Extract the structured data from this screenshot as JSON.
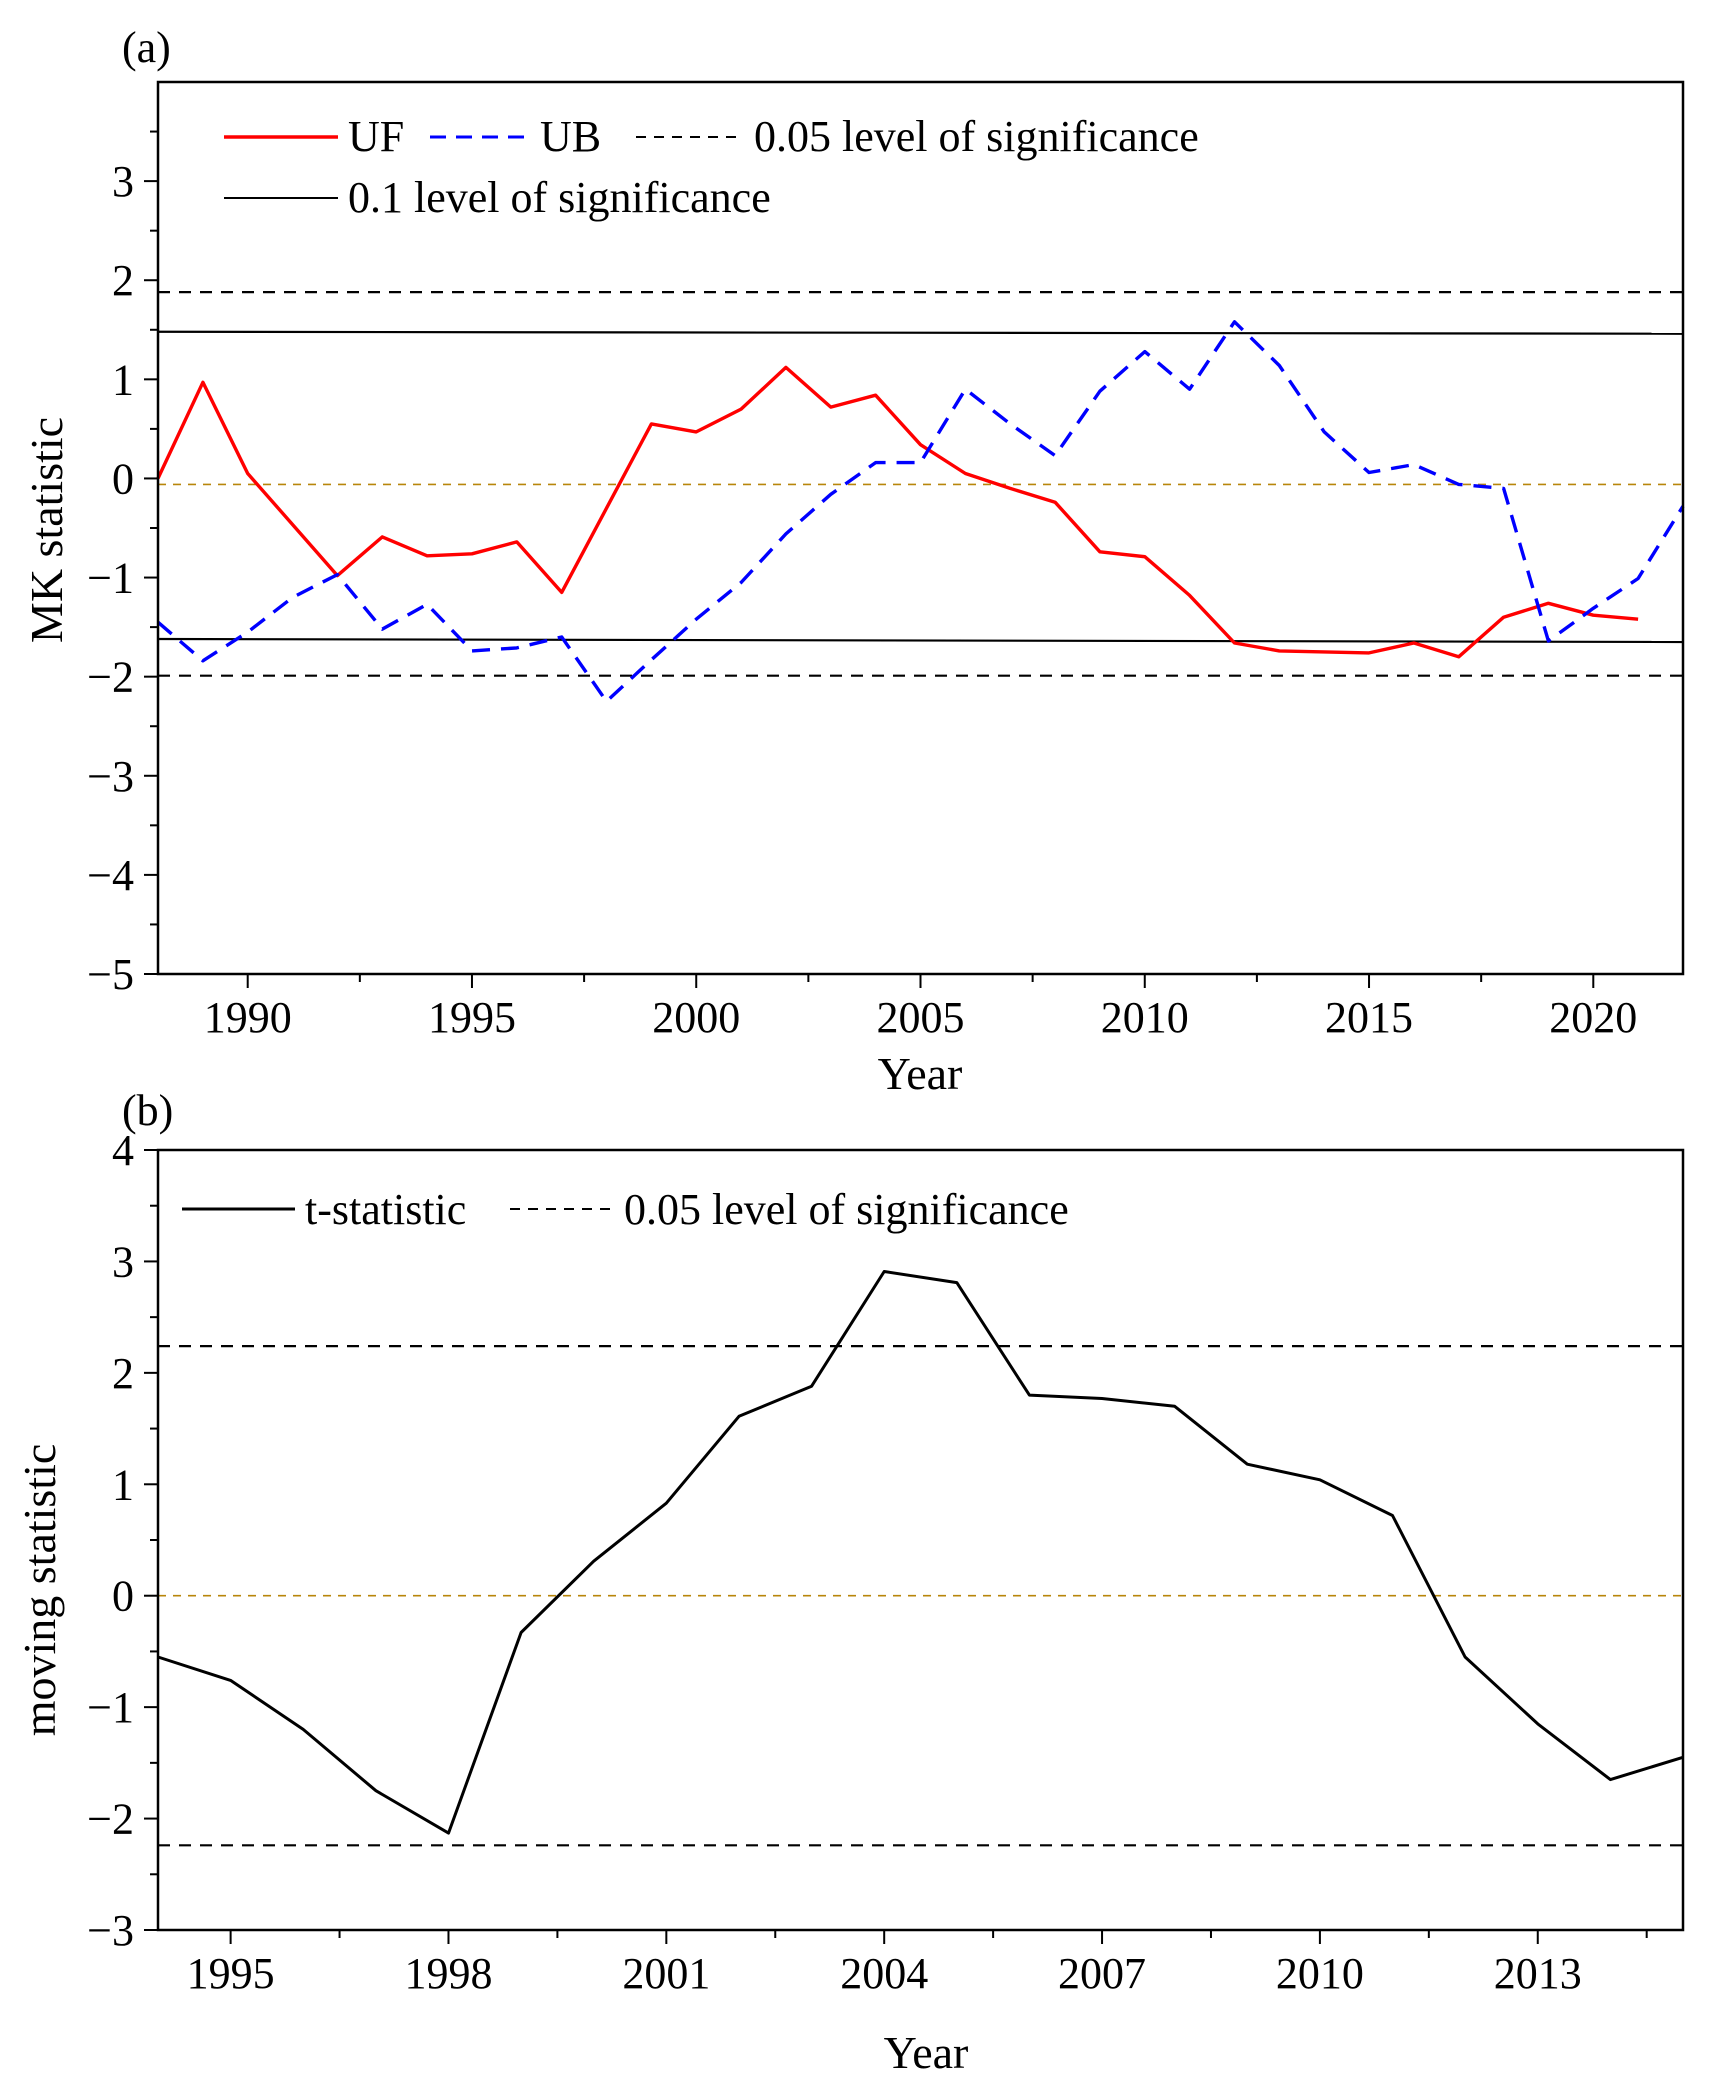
{
  "chart_data": [
    {
      "panel_label": "(a)",
      "type": "line",
      "xlabel": "Year",
      "ylabel": "MK statistic",
      "xlim": [
        1988,
        2022
      ],
      "ylim": [
        -5,
        4
      ],
      "x_ticks": [
        1990,
        1995,
        2000,
        2005,
        2010,
        2015,
        2020
      ],
      "y_ticks": [
        -5,
        -4,
        -3,
        -2,
        -1,
        0,
        1,
        2,
        3
      ],
      "series": [
        {
          "name": "UF",
          "color": "#ff0000",
          "style": "solid",
          "x": [
            1988,
            1989,
            1990,
            1992,
            1993,
            1994,
            1995,
            1996,
            1997,
            1998,
            1999,
            2000,
            2001,
            2002,
            2003,
            2004,
            2005,
            2006,
            2007,
            2008,
            2009,
            2010,
            2011,
            2012,
            2013,
            2014,
            2015,
            2016,
            2017,
            2018,
            2019,
            2020,
            2021
          ],
          "y": [
            0.0,
            0.97,
            0.05,
            -0.98,
            -0.59,
            -0.78,
            -0.76,
            -0.64,
            -1.15,
            -0.3,
            0.55,
            0.47,
            0.7,
            1.12,
            0.72,
            0.84,
            0.34,
            0.05,
            -0.1,
            -0.24,
            -0.74,
            -0.79,
            -1.18,
            -1.66,
            -1.74,
            -1.75,
            -1.76,
            -1.66,
            -1.8,
            -1.4,
            -1.26,
            -1.38,
            -1.42
          ]
        },
        {
          "name": "UB",
          "color": "#0000ff",
          "style": "dashed",
          "x": [
            1988,
            1989,
            1990,
            1991,
            1992,
            1993,
            1994,
            1995,
            1996,
            1997,
            1998,
            1999,
            2000,
            2001,
            2002,
            2003,
            2004,
            2005,
            2006,
            2007,
            2008,
            2009,
            2010,
            2011,
            2012,
            2013,
            2014,
            2015,
            2016,
            2017,
            2018,
            2019,
            2020,
            2021,
            2022
          ],
          "y": [
            -1.45,
            -1.84,
            -1.55,
            -1.2,
            -0.97,
            -1.52,
            -1.27,
            -1.74,
            -1.71,
            -1.6,
            -2.25,
            -1.83,
            -1.42,
            -1.05,
            -0.56,
            -0.16,
            0.16,
            0.16,
            0.9,
            0.55,
            0.23,
            0.88,
            1.28,
            0.9,
            1.58,
            1.14,
            0.47,
            0.06,
            0.14,
            -0.06,
            -0.1,
            -1.64,
            -1.31,
            -1.01,
            -0.28
          ]
        }
      ],
      "reference_lines": [
        {
          "name": "0.05 level of significance",
          "y": [
            1.88,
            1.88
          ],
          "style": "dashed",
          "color": "#000000"
        },
        {
          "name": "0.05 level of significance",
          "y": [
            -1.99,
            -1.99
          ],
          "style": "dashed",
          "color": "#000000"
        },
        {
          "name": "0.1 level of significance",
          "y": [
            1.48,
            1.46
          ],
          "style": "solid",
          "color": "#000000"
        },
        {
          "name": "0.1 level of significance",
          "y": [
            -1.62,
            -1.65
          ],
          "style": "solid",
          "color": "#000000"
        },
        {
          "name": "zero",
          "y": [
            -0.06,
            -0.06
          ],
          "style": "dashed",
          "color": "#b8860b"
        }
      ],
      "legend": {
        "position": "top-left",
        "entries": [
          {
            "label": "UF",
            "color": "#ff0000",
            "style": "solid"
          },
          {
            "label": "UB",
            "color": "#0000ff",
            "style": "dashed"
          },
          {
            "label": "0.05 level of significance",
            "color": "#000000",
            "style": "dashed"
          },
          {
            "label": "0.1 level of significance",
            "color": "#000000",
            "style": "solid"
          }
        ]
      }
    },
    {
      "panel_label": "(b)",
      "type": "line",
      "xlabel": "Year",
      "ylabel": "moving statistic",
      "xlim": [
        1994,
        2015
      ],
      "ylim": [
        -3,
        4
      ],
      "x_ticks": [
        1995,
        1998,
        2001,
        2004,
        2007,
        2010,
        2013
      ],
      "y_ticks": [
        -3,
        -2,
        -1,
        0,
        1,
        2,
        3,
        4
      ],
      "series": [
        {
          "name": "t-statistic",
          "color": "#000000",
          "style": "solid",
          "x": [
            1994,
            1995,
            1996,
            1997,
            1998,
            1999,
            2000,
            2001,
            2002,
            2003,
            2004,
            2005,
            2006,
            2007,
            2008,
            2009,
            2010,
            2011,
            2012,
            2013,
            2014,
            2015
          ],
          "y": [
            -0.55,
            -0.76,
            -1.2,
            -1.75,
            -2.13,
            -0.33,
            0.31,
            0.83,
            1.61,
            1.88,
            2.91,
            2.81,
            1.8,
            1.77,
            1.7,
            1.18,
            1.04,
            0.72,
            -0.55,
            -1.15,
            -1.65,
            -1.45
          ]
        }
      ],
      "reference_lines": [
        {
          "name": "0.05 level of significance",
          "y": [
            2.24,
            2.24
          ],
          "style": "dashed",
          "color": "#000000"
        },
        {
          "name": "0.05 level of significance",
          "y": [
            -2.24,
            -2.24
          ],
          "style": "dashed",
          "color": "#000000"
        },
        {
          "name": "zero",
          "y": [
            0,
            0
          ],
          "style": "dashed",
          "color": "#b8860b"
        }
      ],
      "legend": {
        "position": "top-left",
        "entries": [
          {
            "label": "t-statistic",
            "color": "#000000",
            "style": "solid"
          },
          {
            "label": "0.05 level of significance",
            "color": "#000000",
            "style": "dashed"
          }
        ]
      }
    }
  ]
}
